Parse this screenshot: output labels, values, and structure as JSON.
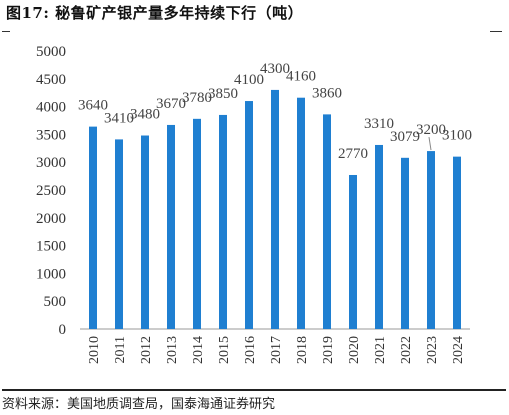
{
  "title": "图17:  秘鲁矿产银产量多年持续下行（吨）",
  "source": "资料来源：美国地质调查局，国泰海通证券研究",
  "chart_data": {
    "type": "bar",
    "categories": [
      "2010",
      "2011",
      "2012",
      "2013",
      "2014",
      "2015",
      "2016",
      "2017",
      "2018",
      "2019",
      "2020",
      "2021",
      "2022",
      "2023",
      "2024"
    ],
    "values": [
      3640,
      3410,
      3480,
      3670,
      3780,
      3850,
      4100,
      4300,
      4160,
      3860,
      2770,
      3310,
      3079,
      3200,
      3100
    ],
    "data_labels": [
      "3640",
      "3410",
      "3480",
      "3670",
      "3780",
      "3850",
      "4100",
      "4300",
      "4160",
      "3860",
      "2770",
      "3310",
      "3079",
      "3200",
      "3100"
    ],
    "yticks": [
      "0",
      "500",
      "1000",
      "1500",
      "2000",
      "2500",
      "3000",
      "3500",
      "4000",
      "4500",
      "5000"
    ],
    "ylim": [
      0,
      5000
    ],
    "bar_color": "#1f7fd1",
    "grid": false,
    "legend": "none"
  }
}
